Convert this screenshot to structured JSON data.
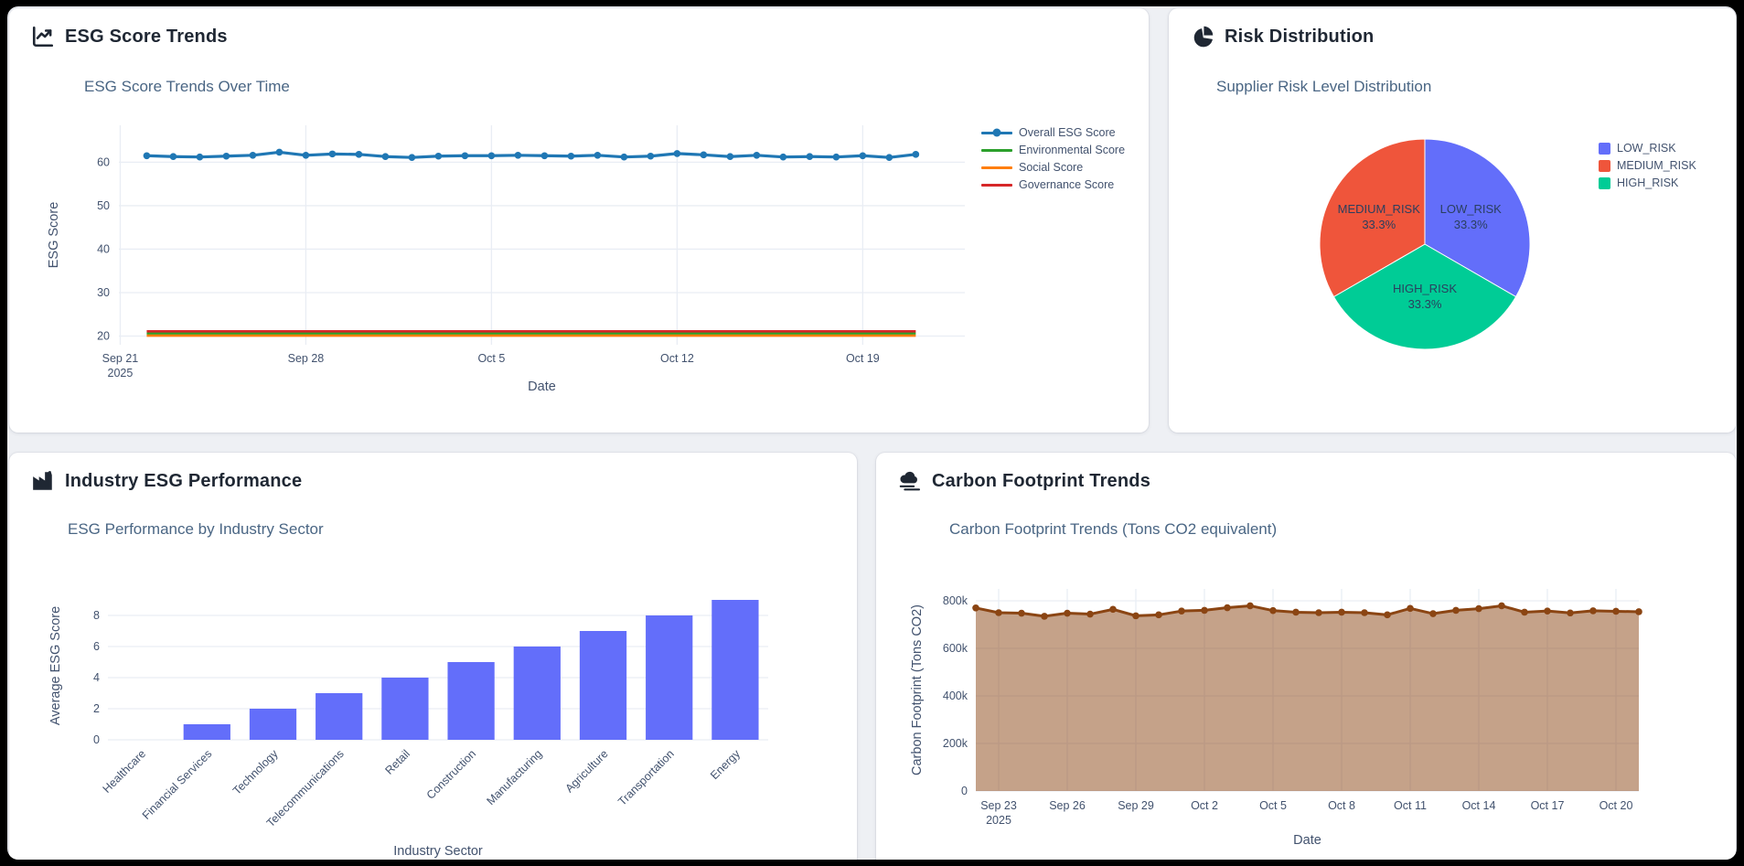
{
  "theme": {
    "page_bg": "#eef0f4",
    "card_bg": "#ffffff",
    "header_color": "#1f2733",
    "chart_title_color": "#4a6684",
    "tick_color": "#42526e",
    "grid_color": "#e9edf4"
  },
  "panels": {
    "esg_trends": {
      "header": "ESG Score Trends",
      "icon": "line-chart-icon"
    },
    "risk": {
      "header": "Risk Distribution",
      "icon": "pie-chart-icon"
    },
    "industry": {
      "header": "Industry ESG Performance",
      "icon": "factory-icon"
    },
    "carbon": {
      "header": "Carbon Footprint Trends",
      "icon": "smog-icon"
    }
  },
  "chart_data": [
    {
      "id": "esg_line",
      "type": "line",
      "title": "ESG Score Trends Over Time",
      "xlabel": "Date",
      "ylabel": "ESG Score",
      "ylim": [
        18,
        68.5
      ],
      "yticks": [
        20,
        30,
        40,
        50,
        60
      ],
      "grid": true,
      "legend_position": "right",
      "x": [
        "Sep 22",
        "Sep 23",
        "Sep 24",
        "Sep 25",
        "Sep 26",
        "Sep 27",
        "Sep 28",
        "Sep 29",
        "Sep 30",
        "Oct 1",
        "Oct 2",
        "Oct 3",
        "Oct 4",
        "Oct 5",
        "Oct 6",
        "Oct 7",
        "Oct 8",
        "Oct 9",
        "Oct 10",
        "Oct 11",
        "Oct 12",
        "Oct 13",
        "Oct 14",
        "Oct 15",
        "Oct 16",
        "Oct 17",
        "Oct 18",
        "Oct 19",
        "Oct 20",
        "Oct 21"
      ],
      "xticks": [
        {
          "day": 0,
          "label": "Sep 21",
          "sublabel": "2025"
        },
        {
          "day": 7,
          "label": "Sep 28"
        },
        {
          "day": 14,
          "label": "Oct 5"
        },
        {
          "day": 21,
          "label": "Oct 12"
        },
        {
          "day": 28,
          "label": "Oct 19"
        }
      ],
      "series": [
        {
          "name": "Overall ESG Score",
          "color": "#1f77b4",
          "markers": true,
          "values": [
            61.5,
            61.3,
            61.2,
            61.4,
            61.6,
            62.3,
            61.6,
            61.9,
            61.8,
            61.3,
            61.1,
            61.4,
            61.5,
            61.5,
            61.6,
            61.5,
            61.4,
            61.6,
            61.2,
            61.4,
            62.0,
            61.7,
            61.3,
            61.6,
            61.2,
            61.3,
            61.2,
            61.5,
            61.1,
            61.8
          ]
        },
        {
          "name": "Environmental Score",
          "color": "#2ca02c",
          "markers": false,
          "values": [
            20.6,
            20.6,
            20.6,
            20.6,
            20.6,
            20.6,
            20.6,
            20.6,
            20.6,
            20.6,
            20.6,
            20.6,
            20.6,
            20.6,
            20.6,
            20.6,
            20.6,
            20.6,
            20.6,
            20.6,
            20.6,
            20.6,
            20.6,
            20.6,
            20.6,
            20.6,
            20.6,
            20.6,
            20.6,
            20.6
          ]
        },
        {
          "name": "Social Score",
          "color": "#ff7f0e",
          "markers": false,
          "values": [
            20.1,
            20.1,
            20.1,
            20.1,
            20.1,
            20.1,
            20.1,
            20.1,
            20.1,
            20.1,
            20.1,
            20.1,
            20.1,
            20.1,
            20.1,
            20.1,
            20.1,
            20.1,
            20.1,
            20.1,
            20.1,
            20.1,
            20.1,
            20.1,
            20.1,
            20.1,
            20.1,
            20.1,
            20.1,
            20.1
          ]
        },
        {
          "name": "Governance Score",
          "color": "#d62728",
          "markers": false,
          "values": [
            21.1,
            21.1,
            21.1,
            21.1,
            21.1,
            21.1,
            21.1,
            21.1,
            21.1,
            21.1,
            21.1,
            21.1,
            21.1,
            21.1,
            21.1,
            21.1,
            21.1,
            21.1,
            21.1,
            21.1,
            21.1,
            21.1,
            21.1,
            21.1,
            21.1,
            21.1,
            21.1,
            21.1,
            21.1,
            21.1
          ]
        }
      ]
    },
    {
      "id": "risk_pie",
      "type": "pie",
      "title": "Supplier Risk Level Distribution",
      "labels": [
        "LOW_RISK",
        "MEDIUM_RISK",
        "HIGH_RISK"
      ],
      "values": [
        33.3,
        33.3,
        33.3
      ],
      "colors": [
        "#636EFA",
        "#EF553B",
        "#00CC96"
      ],
      "percent_labels": [
        "33.3%",
        "33.3%",
        "33.3%"
      ],
      "clockwise_order_from_top": [
        "LOW_RISK",
        "HIGH_RISK",
        "MEDIUM_RISK"
      ],
      "legend_position": "right",
      "label_color": "#2a3f5f"
    },
    {
      "id": "industry_bar",
      "type": "bar",
      "title": "ESG Performance by Industry Sector",
      "xlabel": "Industry Sector",
      "ylabel": "Average ESG Score",
      "categories": [
        "Healthcare",
        "Financial Services",
        "Technology",
        "Telecommunications",
        "Retail",
        "Construction",
        "Manufacturing",
        "Agriculture",
        "Transportation",
        "Energy"
      ],
      "values": [
        0,
        1,
        2,
        3,
        4,
        5,
        6,
        7,
        8,
        9
      ],
      "bar_color": "#636EFA",
      "yticks": [
        0,
        2,
        4,
        6,
        8
      ],
      "ylim": [
        0,
        9.53
      ],
      "tick_rotation": -45,
      "grid": true
    },
    {
      "id": "carbon_area",
      "type": "area",
      "title": "Carbon Footprint Trends (Tons CO2 equivalent)",
      "xlabel": "Date",
      "ylabel": "Carbon Footprint (Tons CO2)",
      "line_color": "#8B4513",
      "fill_color": "rgba(139,69,19,0.5)",
      "ylim": [
        0,
        850000
      ],
      "yticks": [
        0,
        200000,
        400000,
        600000,
        800000
      ],
      "ytick_labels": [
        "0",
        "200k",
        "400k",
        "600k",
        "800k"
      ],
      "grid": true,
      "x": [
        "Sep 22",
        "Sep 23",
        "Sep 24",
        "Sep 25",
        "Sep 26",
        "Sep 27",
        "Sep 28",
        "Sep 29",
        "Sep 30",
        "Oct 1",
        "Oct 2",
        "Oct 3",
        "Oct 4",
        "Oct 5",
        "Oct 6",
        "Oct 7",
        "Oct 8",
        "Oct 9",
        "Oct 10",
        "Oct 11",
        "Oct 12",
        "Oct 13",
        "Oct 14",
        "Oct 15",
        "Oct 16",
        "Oct 17",
        "Oct 18",
        "Oct 19",
        "Oct 20",
        "Oct 21"
      ],
      "xticks": [
        {
          "idx": 1,
          "label": "Sep 23",
          "sublabel": "2025"
        },
        {
          "idx": 4,
          "label": "Sep 26"
        },
        {
          "idx": 7,
          "label": "Sep 29"
        },
        {
          "idx": 10,
          "label": "Oct 2"
        },
        {
          "idx": 13,
          "label": "Oct 5"
        },
        {
          "idx": 16,
          "label": "Oct 8"
        },
        {
          "idx": 19,
          "label": "Oct 11"
        },
        {
          "idx": 22,
          "label": "Oct 14"
        },
        {
          "idx": 25,
          "label": "Oct 17"
        },
        {
          "idx": 28,
          "label": "Oct 20"
        }
      ],
      "values": [
        770000,
        750000,
        748000,
        735000,
        748000,
        744000,
        764000,
        737000,
        741000,
        757000,
        760000,
        771000,
        779000,
        759000,
        752000,
        750000,
        752000,
        750000,
        741000,
        768000,
        746000,
        760000,
        767000,
        779000,
        752000,
        757000,
        749000,
        758000,
        756000,
        754000
      ]
    }
  ]
}
